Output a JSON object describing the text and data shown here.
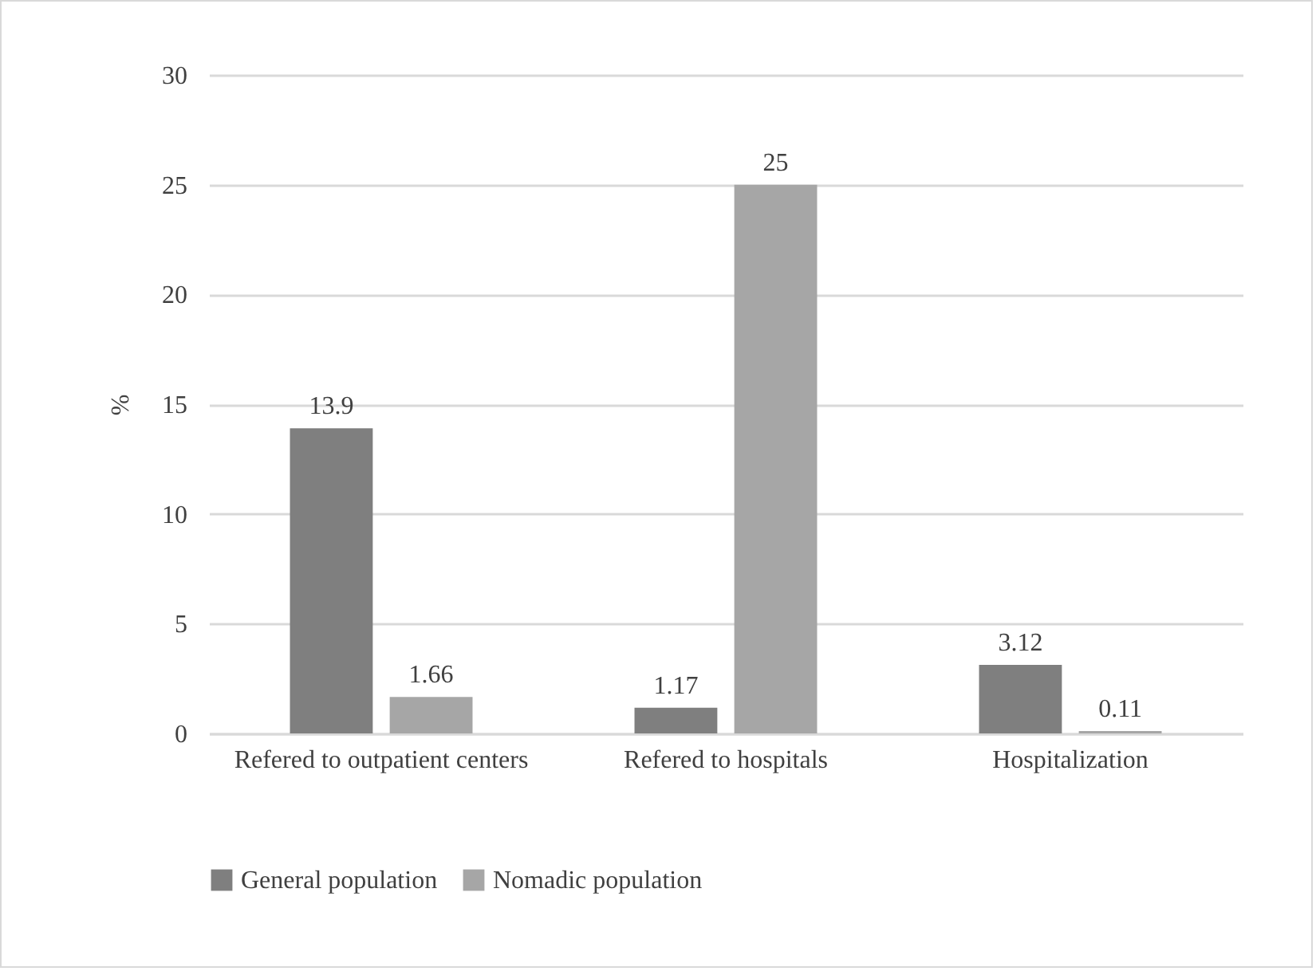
{
  "chart_data": {
    "type": "bar",
    "ylabel": "%",
    "categories": [
      "Refered to outpatient centers",
      "Refered to hospitals",
      "Hospitalization"
    ],
    "series": [
      {
        "name": "General population",
        "color": "#7f7f7f",
        "values": [
          13.9,
          1.17,
          3.12
        ]
      },
      {
        "name": "Nomadic population",
        "color": "#a6a6a6",
        "values": [
          1.66,
          25,
          0.11
        ]
      }
    ],
    "ylim": [
      0,
      30
    ],
    "yticks": [
      0,
      5,
      10,
      15,
      20,
      25,
      30
    ],
    "grid": "y",
    "legend": "bottom",
    "data_labels": true
  }
}
